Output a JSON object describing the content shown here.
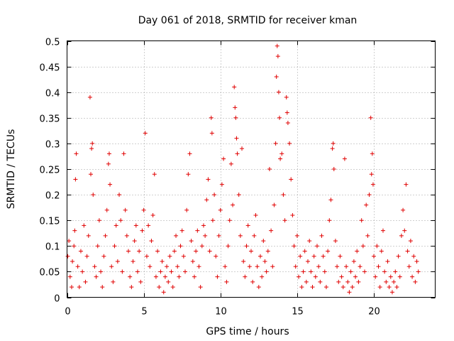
{
  "chart_data": {
    "type": "scatter",
    "title": "Day 061 of 2018, SRMTID for receiver kman",
    "xlabel": "GPS time / hours",
    "ylabel": "SRMTID / TECUs",
    "xlim": [
      0,
      24
    ],
    "ylim": [
      0,
      0.5
    ],
    "xticks": [
      0,
      5,
      10,
      15,
      20
    ],
    "xtick_labels": [
      "0",
      "5",
      "10",
      "15",
      "20"
    ],
    "yticks": [
      0,
      0.05,
      0.1,
      0.15,
      0.2,
      0.25,
      0.3,
      0.35,
      0.4,
      0.45,
      0.5
    ],
    "ytick_labels": [
      "0",
      "0.05",
      "0.1",
      "0.15",
      "0.2",
      "0.25",
      "0.3",
      "0.35",
      "0.4",
      "0.45",
      "0.5"
    ],
    "grid": true,
    "marker": "+",
    "series": [
      {
        "name": "SRMTID",
        "color": "#e00000",
        "points": [
          [
            0.05,
            0.08
          ],
          [
            0.12,
            0.11
          ],
          [
            0.2,
            0.04
          ],
          [
            0.3,
            0.02
          ],
          [
            0.35,
            0.07
          ],
          [
            0.45,
            0.1
          ],
          [
            0.5,
            0.13
          ],
          [
            0.55,
            0.23
          ],
          [
            0.6,
            0.28
          ],
          [
            0.7,
            0.06
          ],
          [
            0.8,
            0.02
          ],
          [
            0.9,
            0.09
          ],
          [
            1.0,
            0.05
          ],
          [
            1.1,
            0.14
          ],
          [
            1.2,
            0.03
          ],
          [
            1.3,
            0.08
          ],
          [
            1.4,
            0.12
          ],
          [
            1.5,
            0.39
          ],
          [
            1.55,
            0.24
          ],
          [
            1.6,
            0.29
          ],
          [
            1.65,
            0.3
          ],
          [
            1.7,
            0.2
          ],
          [
            1.8,
            0.06
          ],
          [
            1.9,
            0.04
          ],
          [
            2.0,
            0.1
          ],
          [
            2.1,
            0.15
          ],
          [
            2.2,
            0.05
          ],
          [
            2.3,
            0.02
          ],
          [
            2.4,
            0.08
          ],
          [
            2.5,
            0.12
          ],
          [
            2.6,
            0.17
          ],
          [
            2.7,
            0.26
          ],
          [
            2.75,
            0.28
          ],
          [
            2.8,
            0.22
          ],
          [
            2.9,
            0.06
          ],
          [
            3.0,
            0.03
          ],
          [
            3.1,
            0.1
          ],
          [
            3.2,
            0.14
          ],
          [
            3.3,
            0.07
          ],
          [
            3.4,
            0.2
          ],
          [
            3.5,
            0.15
          ],
          [
            3.6,
            0.05
          ],
          [
            3.7,
            0.28
          ],
          [
            3.8,
            0.17
          ],
          [
            3.9,
            0.12
          ],
          [
            4.0,
            0.09
          ],
          [
            4.1,
            0.04
          ],
          [
            4.2,
            0.02
          ],
          [
            4.3,
            0.07
          ],
          [
            4.4,
            0.11
          ],
          [
            4.5,
            0.14
          ],
          [
            4.6,
            0.05
          ],
          [
            4.7,
            0.09
          ],
          [
            4.8,
            0.03
          ],
          [
            4.9,
            0.13
          ],
          [
            5.0,
            0.17
          ],
          [
            5.1,
            0.32
          ],
          [
            5.2,
            0.08
          ],
          [
            5.3,
            0.14
          ],
          [
            5.4,
            0.06
          ],
          [
            5.5,
            0.11
          ],
          [
            5.6,
            0.16
          ],
          [
            5.7,
            0.24
          ],
          [
            5.8,
            0.04
          ],
          [
            5.9,
            0.09
          ],
          [
            6.0,
            0.02
          ],
          [
            6.1,
            0.05
          ],
          [
            6.2,
            0.07
          ],
          [
            6.3,
            0.01
          ],
          [
            6.4,
            0.04
          ],
          [
            6.5,
            0.06
          ],
          [
            6.6,
            0.03
          ],
          [
            6.7,
            0.08
          ],
          [
            6.8,
            0.05
          ],
          [
            6.9,
            0.02
          ],
          [
            7.0,
            0.09
          ],
          [
            7.1,
            0.12
          ],
          [
            7.2,
            0.06
          ],
          [
            7.3,
            0.04
          ],
          [
            7.4,
            0.1
          ],
          [
            7.5,
            0.13
          ],
          [
            7.6,
            0.08
          ],
          [
            7.7,
            0.05
          ],
          [
            7.8,
            0.17
          ],
          [
            7.9,
            0.24
          ],
          [
            8.0,
            0.28
          ],
          [
            8.1,
            0.11
          ],
          [
            8.2,
            0.07
          ],
          [
            8.3,
            0.04
          ],
          [
            8.4,
            0.09
          ],
          [
            8.5,
            0.13
          ],
          [
            8.6,
            0.06
          ],
          [
            8.7,
            0.02
          ],
          [
            8.8,
            0.1
          ],
          [
            8.9,
            0.14
          ],
          [
            9.0,
            0.12
          ],
          [
            9.1,
            0.19
          ],
          [
            9.2,
            0.23
          ],
          [
            9.3,
            0.09
          ],
          [
            9.4,
            0.35
          ],
          [
            9.45,
            0.32
          ],
          [
            9.5,
            0.15
          ],
          [
            9.6,
            0.2
          ],
          [
            9.7,
            0.08
          ],
          [
            9.8,
            0.04
          ],
          [
            9.9,
            0.12
          ],
          [
            10.0,
            0.17
          ],
          [
            10.1,
            0.22
          ],
          [
            10.2,
            0.27
          ],
          [
            10.3,
            0.06
          ],
          [
            10.4,
            0.03
          ],
          [
            10.5,
            0.1
          ],
          [
            10.6,
            0.15
          ],
          [
            10.7,
            0.26
          ],
          [
            10.8,
            0.18
          ],
          [
            10.9,
            0.41
          ],
          [
            10.95,
            0.37
          ],
          [
            11.0,
            0.35
          ],
          [
            11.05,
            0.31
          ],
          [
            11.1,
            0.28
          ],
          [
            11.2,
            0.2
          ],
          [
            11.3,
            0.12
          ],
          [
            11.4,
            0.29
          ],
          [
            11.5,
            0.07
          ],
          [
            11.6,
            0.04
          ],
          [
            11.7,
            0.1
          ],
          [
            11.8,
            0.14
          ],
          [
            11.9,
            0.06
          ],
          [
            12.0,
            0.09
          ],
          [
            12.1,
            0.03
          ],
          [
            12.2,
            0.12
          ],
          [
            12.3,
            0.16
          ],
          [
            12.4,
            0.06
          ],
          [
            12.5,
            0.02
          ],
          [
            12.6,
            0.08
          ],
          [
            12.7,
            0.04
          ],
          [
            12.8,
            0.11
          ],
          [
            12.9,
            0.07
          ],
          [
            13.0,
            0.05
          ],
          [
            13.1,
            0.09
          ],
          [
            13.2,
            0.25
          ],
          [
            13.3,
            0.13
          ],
          [
            13.4,
            0.06
          ],
          [
            13.5,
            0.18
          ],
          [
            13.6,
            0.3
          ],
          [
            13.65,
            0.43
          ],
          [
            13.7,
            0.49
          ],
          [
            13.75,
            0.47
          ],
          [
            13.8,
            0.4
          ],
          [
            13.85,
            0.35
          ],
          [
            13.9,
            0.27
          ],
          [
            14.0,
            0.28
          ],
          [
            14.1,
            0.2
          ],
          [
            14.2,
            0.15
          ],
          [
            14.3,
            0.39
          ],
          [
            14.35,
            0.36
          ],
          [
            14.4,
            0.34
          ],
          [
            14.5,
            0.3
          ],
          [
            14.6,
            0.23
          ],
          [
            14.7,
            0.16
          ],
          [
            14.8,
            0.1
          ],
          [
            14.9,
            0.06
          ],
          [
            15.0,
            0.12
          ],
          [
            15.1,
            0.04
          ],
          [
            15.2,
            0.08
          ],
          [
            15.3,
            0.02
          ],
          [
            15.4,
            0.05
          ],
          [
            15.5,
            0.09
          ],
          [
            15.6,
            0.03
          ],
          [
            15.7,
            0.07
          ],
          [
            15.8,
            0.11
          ],
          [
            15.9,
            0.05
          ],
          [
            16.0,
            0.02
          ],
          [
            16.1,
            0.08
          ],
          [
            16.2,
            0.04
          ],
          [
            16.3,
            0.1
          ],
          [
            16.4,
            0.06
          ],
          [
            16.5,
            0.03
          ],
          [
            16.6,
            0.12
          ],
          [
            16.7,
            0.08
          ],
          [
            16.8,
            0.05
          ],
          [
            16.9,
            0.02
          ],
          [
            17.0,
            0.09
          ],
          [
            17.1,
            0.15
          ],
          [
            17.2,
            0.19
          ],
          [
            17.3,
            0.29
          ],
          [
            17.35,
            0.3
          ],
          [
            17.4,
            0.25
          ],
          [
            17.5,
            0.11
          ],
          [
            17.6,
            0.06
          ],
          [
            17.7,
            0.03
          ],
          [
            17.8,
            0.08
          ],
          [
            17.9,
            0.04
          ],
          [
            18.0,
            0.02
          ],
          [
            18.1,
            0.27
          ],
          [
            18.2,
            0.06
          ],
          [
            18.3,
            0.03
          ],
          [
            18.4,
            0.01
          ],
          [
            18.5,
            0.05
          ],
          [
            18.6,
            0.02
          ],
          [
            18.7,
            0.07
          ],
          [
            18.8,
            0.04
          ],
          [
            18.9,
            0.09
          ],
          [
            19.0,
            0.03
          ],
          [
            19.1,
            0.06
          ],
          [
            19.2,
            0.15
          ],
          [
            19.3,
            0.1
          ],
          [
            19.4,
            0.05
          ],
          [
            19.5,
            0.18
          ],
          [
            19.6,
            0.12
          ],
          [
            19.7,
            0.2
          ],
          [
            19.8,
            0.35
          ],
          [
            19.85,
            0.24
          ],
          [
            19.9,
            0.28
          ],
          [
            19.95,
            0.22
          ],
          [
            20.0,
            0.08
          ],
          [
            20.1,
            0.04
          ],
          [
            20.2,
            0.1
          ],
          [
            20.3,
            0.06
          ],
          [
            20.4,
            0.02
          ],
          [
            20.5,
            0.09
          ],
          [
            20.6,
            0.13
          ],
          [
            20.7,
            0.05
          ],
          [
            20.8,
            0.03
          ],
          [
            20.9,
            0.07
          ],
          [
            21.0,
            0.02
          ],
          [
            21.1,
            0.04
          ],
          [
            21.2,
            0.01
          ],
          [
            21.3,
            0.03
          ],
          [
            21.4,
            0.05
          ],
          [
            21.5,
            0.02
          ],
          [
            21.6,
            0.08
          ],
          [
            21.7,
            0.04
          ],
          [
            21.8,
            0.12
          ],
          [
            21.9,
            0.17
          ],
          [
            22.0,
            0.13
          ],
          [
            22.1,
            0.22
          ],
          [
            22.2,
            0.09
          ],
          [
            22.3,
            0.06
          ],
          [
            22.4,
            0.11
          ],
          [
            22.5,
            0.04
          ],
          [
            22.6,
            0.08
          ],
          [
            22.7,
            0.03
          ],
          [
            22.8,
            0.07
          ],
          [
            22.9,
            0.05
          ]
        ]
      }
    ]
  }
}
